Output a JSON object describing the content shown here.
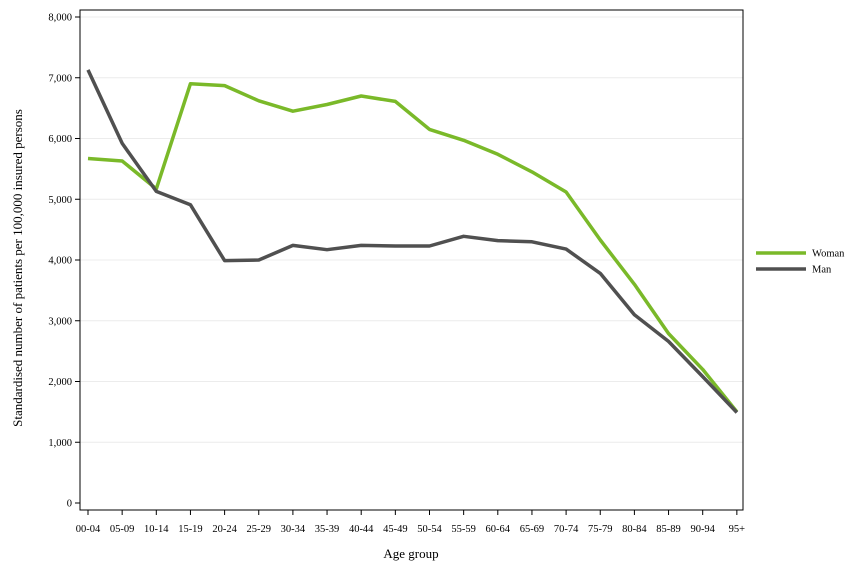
{
  "chart_data": {
    "type": "line",
    "xlabel": "Age group",
    "ylabel": "Standardised number of patients per 100,000 insured persons",
    "categories": [
      "00-04",
      "05-09",
      "10-14",
      "15-19",
      "20-24",
      "25-29",
      "30-34",
      "35-39",
      "40-44",
      "45-49",
      "50-54",
      "55-59",
      "60-64",
      "65-69",
      "70-74",
      "75-79",
      "80-84",
      "85-89",
      "90-94",
      "95+"
    ],
    "ylim": [
      0,
      8000
    ],
    "yticks": [
      0,
      1000,
      2000,
      3000,
      4000,
      5000,
      6000,
      7000,
      8000
    ],
    "ytick_labels": [
      "0",
      "1,000",
      "2,000",
      "3,000",
      "4,000",
      "5,000",
      "6,000",
      "7,000",
      "8,000"
    ],
    "grid": true,
    "legend_position": "right",
    "series": [
      {
        "name": "Woman",
        "color": "#7ab929",
        "values": [
          5670,
          5630,
          5170,
          6900,
          6870,
          6620,
          6450,
          6560,
          6700,
          6610,
          6150,
          5970,
          5740,
          5450,
          5120,
          4330,
          3600,
          2790,
          2200,
          1500
        ]
      },
      {
        "name": "Man",
        "color": "#505050",
        "values": [
          7130,
          5920,
          5130,
          4910,
          3990,
          4000,
          4240,
          4170,
          4240,
          4230,
          4230,
          4390,
          4320,
          4300,
          4180,
          3780,
          3100,
          2660,
          2080,
          1490
        ]
      }
    ]
  }
}
